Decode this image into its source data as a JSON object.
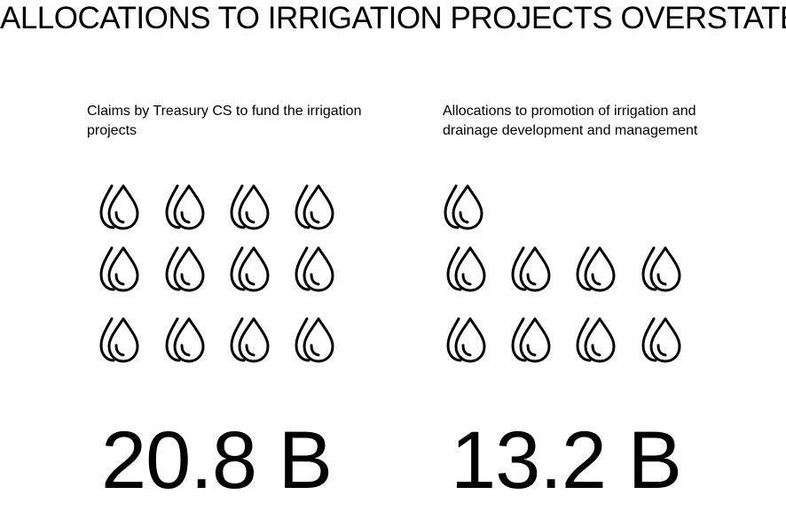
{
  "title": "ALLOCATIONS TO IRRIGATION PROJECTS OVERSTATED",
  "panels": [
    {
      "caption": "Claims by Treasury CS to fund the irrigation projects",
      "value": "20.8 B",
      "icon": "water-drops-icon"
    },
    {
      "caption": "Allocations to promotion of irrigation and drainage development and management",
      "value": "13.2 B",
      "icon": "water-drops-icon"
    }
  ],
  "colors": {
    "ink": "#000000",
    "background": "#ffffff"
  }
}
